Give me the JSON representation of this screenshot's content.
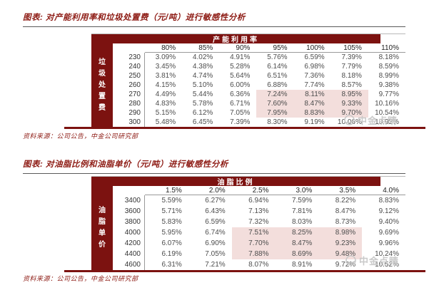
{
  "colors": {
    "header_band": "#7c1210",
    "highlight_pink": "#f3dedc",
    "title_text": "#8d1a13",
    "watermark_gray": "#c8c8c8"
  },
  "watermark": {
    "icon": "cicc-circle-logo",
    "text": "中金点睛"
  },
  "figures": [
    {
      "title": "图表: 对产能利用率和垃圾处置费（元/吨）进行敏感性分析",
      "source": "资料来源：公司公告，中金公司研究部",
      "table": {
        "band_label": "产能利用率",
        "side_label": "垃圾处置费",
        "col_headers": [
          "80%",
          "85%",
          "90%",
          "95%",
          "100%",
          "105%",
          "110%"
        ],
        "row_headers": [
          "230",
          "240",
          "250",
          "260",
          "270",
          "280",
          "290",
          "300"
        ],
        "rows": [
          [
            "3.09%",
            "4.02%",
            "4.91%",
            "5.76%",
            "6.59%",
            "7.39%",
            "8.18%"
          ],
          [
            "3.45%",
            "4.38%",
            "5.28%",
            "6.14%",
            "6.98%",
            "7.79%",
            "8.59%"
          ],
          [
            "3.81%",
            "4.74%",
            "5.64%",
            "6.51%",
            "7.36%",
            "8.18%",
            "8.99%"
          ],
          [
            "4.15%",
            "5.10%",
            "6.00%",
            "6.88%",
            "7.74%",
            "8.57%",
            "9.38%"
          ],
          [
            "4.49%",
            "5.44%",
            "6.36%",
            "7.24%",
            "8.11%",
            "8.95%",
            "9.77%"
          ],
          [
            "4.83%",
            "5.78%",
            "6.71%",
            "7.60%",
            "8.47%",
            "9.33%",
            "10.16%"
          ],
          [
            "5.15%",
            "6.12%",
            "7.05%",
            "7.95%",
            "8.83%",
            "9.70%",
            "10.54%"
          ],
          [
            "5.48%",
            "6.45%",
            "7.39%",
            "8.30%",
            "9.19%",
            "10.06%",
            "10.92%"
          ]
        ],
        "highlight_rows": [
          4,
          5,
          6
        ],
        "highlight_cols": [
          3,
          4,
          5
        ]
      }
    },
    {
      "title": "图表: 对油脂比例和油脂单价（元/吨）进行敏感性分析",
      "source": "资料来源：公司公告，中金公司研究部",
      "table": {
        "band_label": "油脂比例",
        "side_label": "油脂单价",
        "col_headers": [
          "1.5%",
          "2.0%",
          "2.5%",
          "3.0%",
          "3.5%",
          "4.0%"
        ],
        "row_headers": [
          "3400",
          "3600",
          "3800",
          "4000",
          "4200",
          "4400",
          "4600"
        ],
        "rows": [
          [
            "5.59%",
            "6.27%",
            "6.94%",
            "7.59%",
            "8.22%",
            "8.83%"
          ],
          [
            "5.71%",
            "6.43%",
            "7.13%",
            "7.81%",
            "8.47%",
            "9.12%"
          ],
          [
            "5.83%",
            "6.59%",
            "7.32%",
            "8.03%",
            "8.73%",
            "9.40%"
          ],
          [
            "5.95%",
            "6.74%",
            "7.51%",
            "8.25%",
            "8.98%",
            "9.69%"
          ],
          [
            "6.07%",
            "6.90%",
            "7.70%",
            "8.47%",
            "9.23%",
            "9.96%"
          ],
          [
            "6.19%",
            "7.05%",
            "7.88%",
            "8.69%",
            "9.48%",
            "10.24%"
          ],
          [
            "6.31%",
            "7.21%",
            "8.07%",
            "8.91%",
            "9.72%",
            "10.52%"
          ]
        ],
        "highlight_rows": [
          3,
          4,
          5
        ],
        "highlight_cols": [
          2,
          3,
          4
        ]
      }
    }
  ]
}
